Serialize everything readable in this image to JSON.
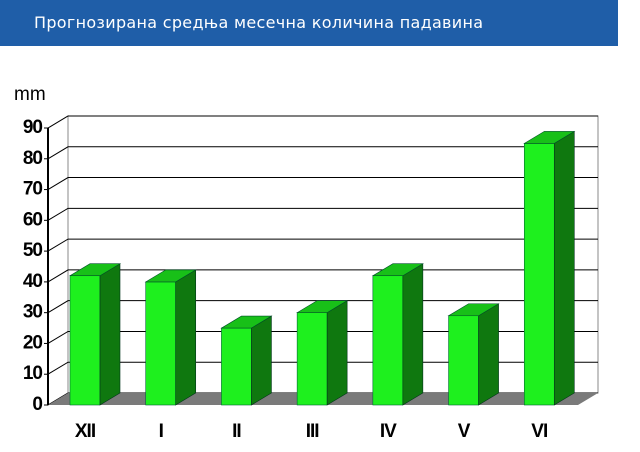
{
  "chart_data": {
    "type": "bar3d",
    "title": "Прогнозирана средња месечна количина падавина",
    "y_label": "mm",
    "categories": [
      "XII",
      "I",
      "II",
      "III",
      "IV",
      "V",
      "VI"
    ],
    "values": [
      42,
      40,
      25,
      30,
      42,
      29,
      85
    ],
    "color": "#1ef01e",
    "ylim": [
      0,
      90
    ],
    "yticks": [
      0,
      10,
      20,
      30,
      40,
      50,
      60,
      70,
      80,
      90
    ],
    "grid": true
  }
}
